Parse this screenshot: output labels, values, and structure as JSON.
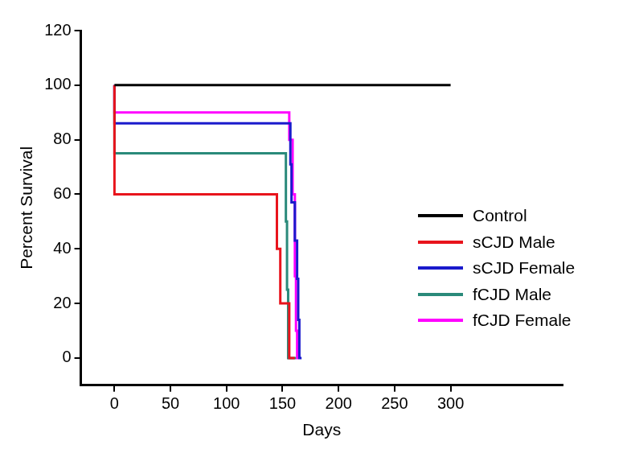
{
  "chart_data": {
    "type": "line",
    "x_label": "Days",
    "y_label": "Percent Survival",
    "xlim": [
      -30,
      400
    ],
    "xticks": [
      0,
      50,
      100,
      150,
      200,
      250,
      300
    ],
    "ylim": [
      -10,
      120
    ],
    "yticks": [
      0,
      20,
      40,
      60,
      80,
      100,
      120
    ],
    "grid": false,
    "legend": "right",
    "line_style": "step",
    "series": [
      {
        "name": "Control",
        "color": "#000000",
        "x": [
          0,
          300
        ],
        "values": [
          100,
          100
        ]
      },
      {
        "name": "sCJD Male",
        "color": "#e8141c",
        "x": [
          0,
          145,
          148,
          156,
          161
        ],
        "values": [
          100,
          60,
          40,
          20,
          0
        ]
      },
      {
        "name": "sCJD Female",
        "color": "#1a1acc",
        "x": [
          0,
          157,
          158,
          161,
          163,
          164,
          165,
          167
        ],
        "values": [
          100,
          86,
          71,
          57,
          43,
          29,
          14,
          0
        ]
      },
      {
        "name": "fCJD Male",
        "color": "#2a8a7a",
        "x": [
          0,
          153,
          154,
          155,
          162
        ],
        "values": [
          100,
          75,
          50,
          25,
          0
        ]
      },
      {
        "name": "fCJD Female",
        "color": "#ff00ff",
        "x": [
          0,
          156,
          159,
          161,
          162,
          163,
          164
        ],
        "values": [
          100,
          90,
          80,
          60,
          30,
          10,
          0
        ]
      }
    ]
  }
}
